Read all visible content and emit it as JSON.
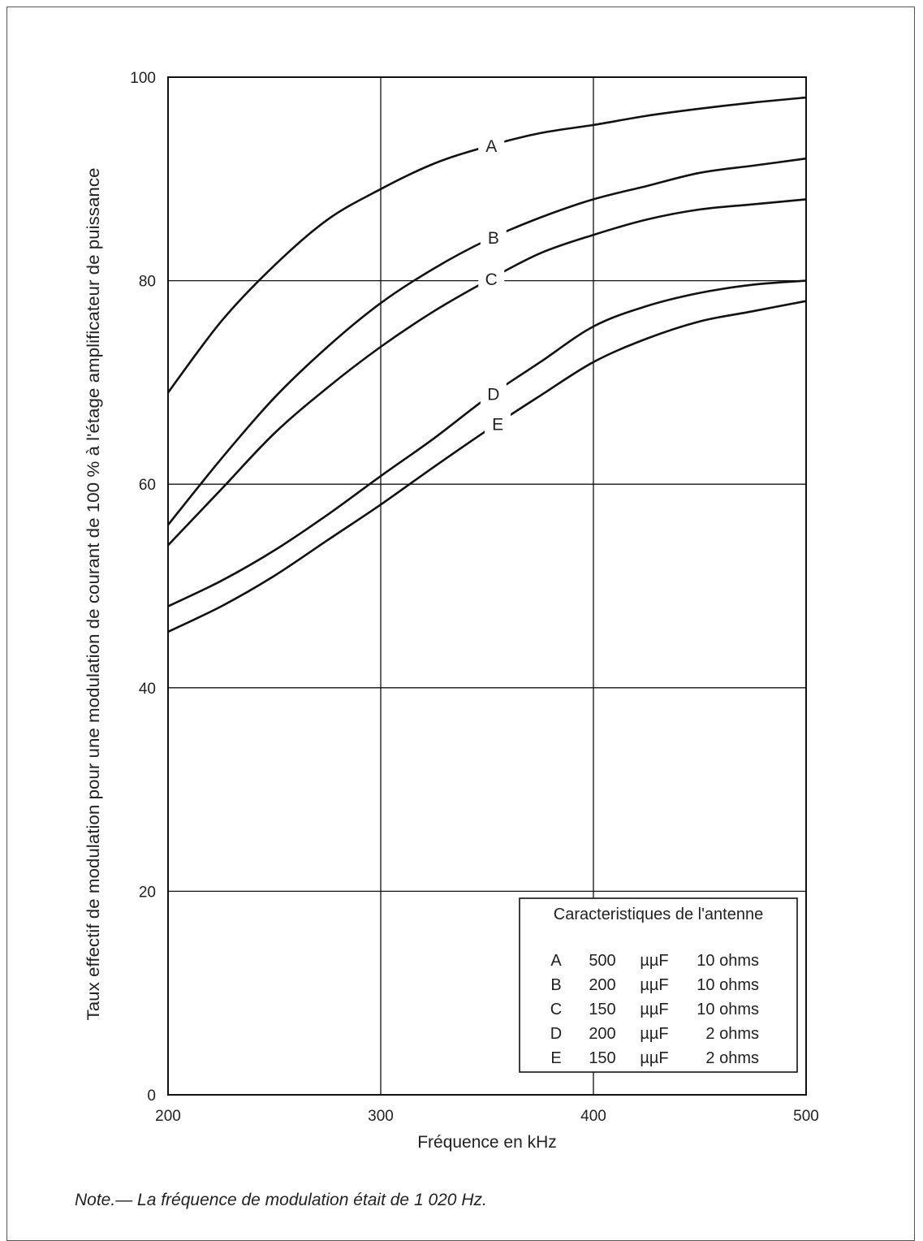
{
  "chart_data": {
    "type": "line",
    "xlabel": "Fréquence en kHz",
    "ylabel": "Taux effectif de modulation pour une modulation de courant de 100 % à l'étage amplificateur de puissance",
    "xlim": [
      200,
      500
    ],
    "ylim": [
      0,
      100
    ],
    "x_ticks": [
      200,
      300,
      400,
      500
    ],
    "y_ticks": [
      0,
      20,
      40,
      60,
      80,
      100
    ],
    "grid": true,
    "series": [
      {
        "name": "A",
        "x": [
          200,
          225,
          250,
          275,
          300,
          325,
          350,
          375,
          400,
          425,
          450,
          475,
          500
        ],
        "values": [
          69,
          76,
          81.5,
          86,
          89,
          91.5,
          93.2,
          94.5,
          95.3,
          96.2,
          96.9,
          97.5,
          98
        ]
      },
      {
        "name": "B",
        "x": [
          200,
          225,
          250,
          275,
          300,
          325,
          350,
          375,
          400,
          425,
          450,
          475,
          500
        ],
        "values": [
          56,
          62.5,
          68.5,
          73.5,
          77.8,
          81.2,
          84,
          86.2,
          88,
          89.3,
          90.6,
          91.3,
          92
        ]
      },
      {
        "name": "C",
        "x": [
          200,
          225,
          250,
          275,
          300,
          325,
          350,
          375,
          400,
          425,
          450,
          475,
          500
        ],
        "values": [
          54,
          59.5,
          65,
          69.5,
          73.5,
          77,
          80,
          82.7,
          84.5,
          86,
          87,
          87.5,
          88
        ]
      },
      {
        "name": "D",
        "x": [
          200,
          225,
          250,
          275,
          300,
          325,
          350,
          375,
          400,
          425,
          450,
          475,
          500
        ],
        "values": [
          48,
          50.5,
          53.5,
          57,
          60.8,
          64.5,
          68.5,
          72,
          75.5,
          77.5,
          78.8,
          79.6,
          80
        ]
      },
      {
        "name": "E",
        "x": [
          200,
          225,
          250,
          275,
          300,
          325,
          350,
          375,
          400,
          425,
          450,
          475,
          500
        ],
        "values": [
          45.5,
          48,
          51,
          54.5,
          58,
          61.7,
          65.3,
          68.7,
          72,
          74.3,
          76,
          77,
          78
        ]
      }
    ],
    "legend": {
      "title": "Caracteristiques de l'antenne",
      "placement": "bottom-right",
      "rows": [
        {
          "label": "A",
          "cap": "500",
          "unit": "µµF",
          "res": "10 ohms"
        },
        {
          "label": "B",
          "cap": "200",
          "unit": "µµF",
          "res": "10 ohms"
        },
        {
          "label": "C",
          "cap": "150",
          "unit": "µµF",
          "res": "10 ohms"
        },
        {
          "label": "D",
          "cap": "200",
          "unit": "µµF",
          "res": "2 ohms"
        },
        {
          "label": "E",
          "cap": "150",
          "unit": "µµF",
          "res": "2 ohms"
        }
      ]
    }
  },
  "note": "Note.— La fréquence de modulation était de 1 020 Hz."
}
